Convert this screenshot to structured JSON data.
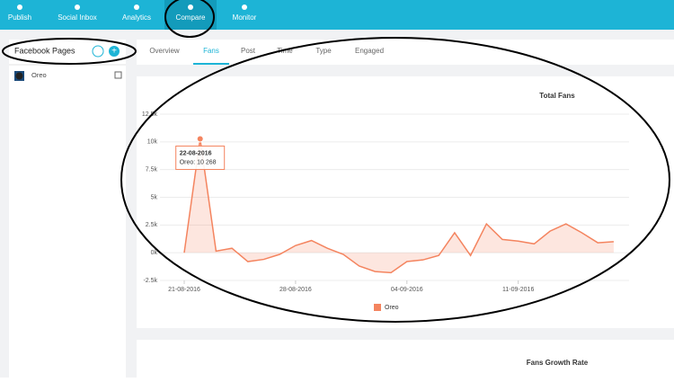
{
  "nav": {
    "items": [
      "Publish",
      "Social Inbox",
      "Analytics",
      "Compare",
      "Monitor"
    ],
    "active": 3
  },
  "sidebar": {
    "title": "Facebook Pages",
    "pages": [
      "Oreo"
    ]
  },
  "tabs": {
    "items": [
      "Overview",
      "Fans",
      "Post",
      "Time",
      "Type",
      "Engaged"
    ],
    "active": 1
  },
  "chart_data": {
    "type": "area",
    "title": "Total Fans",
    "x": [
      "21-08-2016",
      "22-08-2016",
      "23-08-2016",
      "24-08-2016",
      "25-08-2016",
      "26-08-2016",
      "27-08-2016",
      "28-08-2016",
      "29-08-2016",
      "30-08-2016",
      "31-08-2016",
      "01-09-2016",
      "02-09-2016",
      "03-09-2016",
      "04-09-2016",
      "05-09-2016",
      "06-09-2016",
      "07-09-2016",
      "08-09-2016",
      "09-09-2016",
      "10-09-2016",
      "11-09-2016",
      "12-09-2016",
      "13-09-2016",
      "14-09-2016",
      "15-09-2016",
      "16-09-2016",
      "17-09-2016"
    ],
    "series": [
      {
        "name": "Oreo",
        "color": "#f4845f",
        "values": [
          0,
          10268,
          150,
          400,
          -800,
          -600,
          -150,
          650,
          1100,
          400,
          -150,
          -1200,
          -1700,
          -1800,
          -800,
          -650,
          -250,
          1800,
          -250,
          2600,
          1200,
          1050,
          800,
          1950,
          2600,
          1800,
          900,
          1000
        ]
      }
    ],
    "xticks": [
      "21-08-2016",
      "28-08-2016",
      "04-09-2016",
      "11-09-2016"
    ],
    "ylim": [
      -2500,
      12500
    ],
    "yticks": [
      {
        "value": -2500,
        "label": "-2.5k"
      },
      {
        "value": 0,
        "label": "0k"
      },
      {
        "value": 2500,
        "label": "2.5k"
      },
      {
        "value": 5000,
        "label": "5k"
      },
      {
        "value": 7500,
        "label": "7.5k"
      },
      {
        "value": 10000,
        "label": "10k"
      },
      {
        "value": 12500,
        "label": "12.5k"
      }
    ],
    "grid": true,
    "tooltip": {
      "title": "22-08-2016",
      "label": "Oreo: 10 268"
    }
  },
  "second_card": {
    "title": "Fans Growth Rate"
  }
}
